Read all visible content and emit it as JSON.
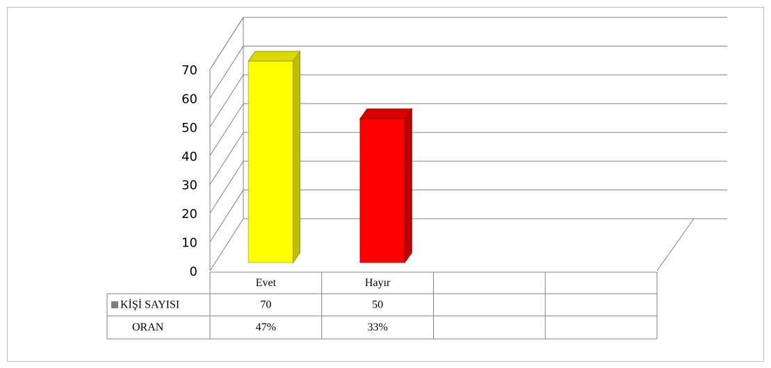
{
  "chart_data": {
    "type": "bar3d",
    "categories": [
      "Evet",
      "Hayır",
      null,
      null
    ],
    "series": [
      {
        "name": "KİŞİ SAYISI",
        "color": "#7f7f7f",
        "point_colors": [
          "#ffff00",
          "#ff0000",
          null,
          null
        ],
        "values": [
          70,
          50,
          null,
          null
        ]
      }
    ],
    "table_rows": [
      {
        "name": "ORAN",
        "values": [
          47,
          33,
          null,
          null
        ],
        "value_labels": [
          "47%",
          "33%",
          null,
          null
        ]
      }
    ],
    "ylim": [
      0,
      70
    ],
    "yticks": [
      0,
      10,
      20,
      30,
      40,
      50,
      60,
      70
    ],
    "grid": true
  }
}
